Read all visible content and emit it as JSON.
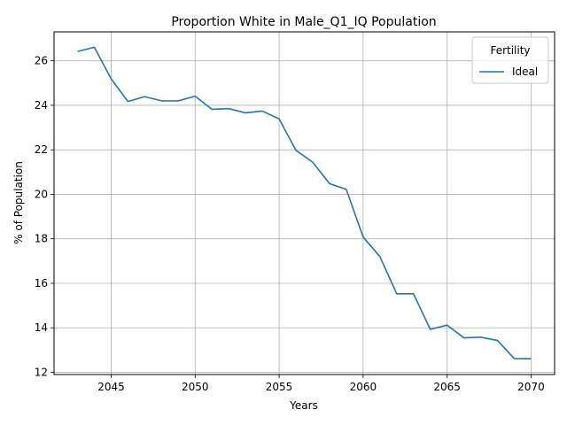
{
  "chart_data": {
    "type": "line",
    "title": "Proportion White in Male_Q1_IQ Population",
    "xlabel": "Years",
    "ylabel": "% of Population",
    "xlim": [
      2041.6,
      2071.4
    ],
    "ylim": [
      11.9,
      27.3
    ],
    "x_ticks": [
      2045,
      2050,
      2055,
      2060,
      2065,
      2070
    ],
    "y_ticks": [
      12,
      14,
      16,
      18,
      20,
      22,
      24,
      26
    ],
    "grid": true,
    "legend": {
      "title": "Fertility",
      "placement": "top-right"
    },
    "series": [
      {
        "name": "Ideal",
        "color": "#1f77b4",
        "x": [
          2043,
          2044,
          2045,
          2046,
          2047,
          2048,
          2049,
          2050,
          2051,
          2052,
          2053,
          2054,
          2055,
          2056,
          2057,
          2058,
          2059,
          2060,
          2061,
          2062,
          2063,
          2064,
          2065,
          2066,
          2067,
          2068,
          2069,
          2070
        ],
        "y": [
          26.42,
          26.61,
          25.19,
          24.17,
          24.39,
          24.2,
          24.2,
          24.41,
          23.82,
          23.85,
          23.66,
          23.74,
          23.39,
          21.98,
          21.44,
          20.48,
          20.22,
          18.08,
          17.2,
          15.53,
          15.53,
          13.93,
          14.12,
          13.55,
          13.58,
          13.43,
          12.62,
          12.61
        ]
      }
    ]
  }
}
